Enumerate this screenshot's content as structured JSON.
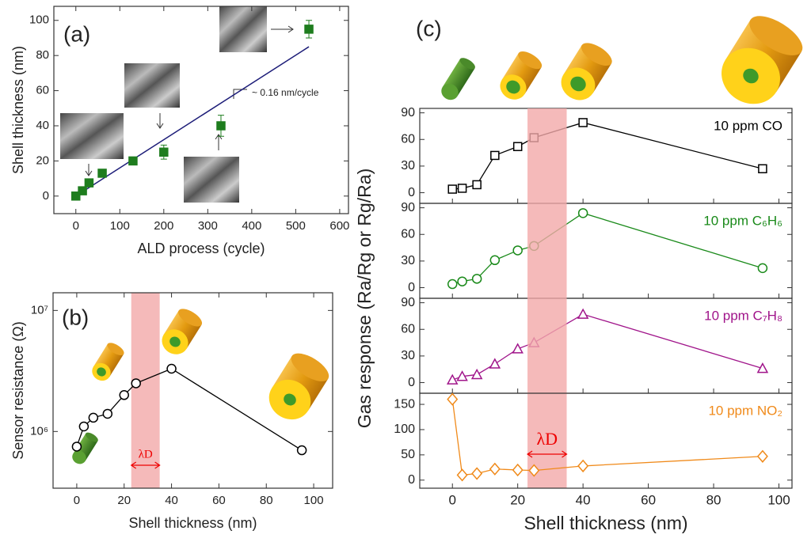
{
  "chart_data": [
    {
      "type": "scatter",
      "label": "(a)",
      "xlabel": "ALD process (cycle)",
      "ylabel": "Shell thickness (nm)",
      "x": [
        0,
        15,
        30,
        60,
        130,
        200,
        330,
        530
      ],
      "values": [
        0,
        3,
        7.5,
        13,
        20,
        25,
        40,
        95
      ],
      "errors": [
        null,
        null,
        null,
        null,
        null,
        4,
        6,
        5
      ],
      "color": "#1e7d1e",
      "marker": "square",
      "filled": true,
      "fit_x": [
        0,
        530
      ],
      "fit_y": [
        0,
        85
      ],
      "fit_color": "#1c1c78",
      "annotation": "~ 0.16 nm/cycle",
      "xlim": [
        -50,
        620
      ],
      "xticks": [
        0,
        100,
        200,
        300,
        400,
        500,
        600
      ],
      "ylim": [
        -10,
        108
      ],
      "yticks": [
        0,
        20,
        40,
        60,
        80,
        100
      ]
    },
    {
      "type": "line",
      "label": "(b)",
      "xlabel": "Shell thickness (nm)",
      "ylabel": "Sensor resistance (Ω)",
      "log_y": true,
      "x": [
        0,
        3,
        7,
        13,
        20,
        25,
        40,
        95
      ],
      "values": [
        750000,
        1100000,
        1300000,
        1400000,
        2000000,
        2500000,
        3300000,
        700000
      ],
      "color": "#000000",
      "marker": "circle",
      "filled": false,
      "xlim": [
        -10,
        108
      ],
      "xticks": [
        0,
        20,
        40,
        60,
        80,
        100
      ],
      "ylim": [
        340000,
        14000000
      ],
      "yticks": [
        {
          "value": 1000000,
          "label": "10⁶"
        },
        {
          "value": 10000000,
          "label": "10⁷"
        }
      ],
      "band": [
        23,
        35
      ],
      "band_label": "λD"
    },
    {
      "type": "line",
      "label": "(c)",
      "ylabel": "Gas response (Ra/Rg or Rg/Ra)",
      "name": "10 ppm CO",
      "x": [
        0,
        3,
        7.5,
        13,
        20,
        25,
        40,
        95
      ],
      "values": [
        4,
        5,
        9,
        42,
        52,
        62,
        79,
        27
      ],
      "color": "#000000",
      "marker": "square",
      "filled": false,
      "xlim": [
        -10,
        104
      ],
      "xticks": [
        0,
        20,
        40,
        60,
        80,
        100
      ],
      "ylim": [
        -12,
        95
      ],
      "yticks": [
        0,
        30,
        60,
        90
      ]
    },
    {
      "type": "line",
      "name": "10 ppm C₆H₆",
      "x": [
        0,
        3,
        7.5,
        13,
        20,
        25,
        40,
        95
      ],
      "values": [
        4,
        7,
        10,
        31,
        42,
        47,
        84,
        22
      ],
      "color": "#1a8a1a",
      "marker": "circle",
      "filled": false,
      "xlim": [
        -10,
        104
      ],
      "xticks": [
        0,
        20,
        40,
        60,
        80,
        100
      ],
      "ylim": [
        -12,
        95
      ],
      "yticks": [
        0,
        30,
        60,
        90
      ]
    },
    {
      "type": "line",
      "name": "10 ppm C₇H₈",
      "x": [
        0,
        3,
        7.5,
        13,
        20,
        25,
        40,
        95
      ],
      "values": [
        3,
        7,
        9,
        21,
        38,
        45,
        77,
        16
      ],
      "color": "#a0148a",
      "marker": "triangle",
      "filled": false,
      "xlim": [
        -10,
        104
      ],
      "xticks": [
        0,
        20,
        40,
        60,
        80,
        100
      ],
      "ylim": [
        -12,
        95
      ],
      "yticks": [
        0,
        30,
        60,
        90
      ]
    },
    {
      "type": "line",
      "name": "10 ppm NO₂",
      "xlabel": "Shell thickness (nm)",
      "x": [
        0,
        3,
        7.5,
        13,
        20,
        25,
        40,
        95
      ],
      "values": [
        160,
        10,
        13,
        22,
        20,
        19,
        28,
        47
      ],
      "color": "#f08a1a",
      "marker": "diamond",
      "filled": false,
      "xlim": [
        -10,
        104
      ],
      "xticks": [
        0,
        20,
        40,
        60,
        80,
        100
      ],
      "ylim": [
        -16,
        172
      ],
      "yticks": [
        0,
        50,
        100,
        150
      ],
      "band": [
        23,
        35
      ],
      "band_label": "λD"
    }
  ]
}
